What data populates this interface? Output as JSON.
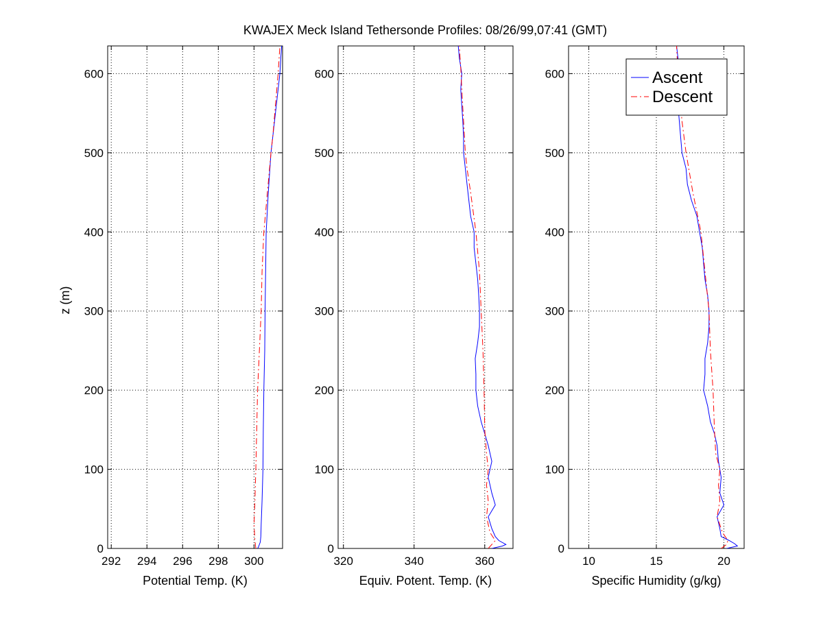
{
  "figure": {
    "title": "KWAJEX Meck Island Tethersonde Profiles: 08/26/99,07:41 (GMT)",
    "ylabel": "z (m)",
    "legend": {
      "placement": "top-right of third panel",
      "entries": [
        {
          "name": "Ascent",
          "color": "#0000ff",
          "style": "solid"
        },
        {
          "name": "Descent",
          "color": "#ff0000",
          "style": "dash-dot"
        }
      ]
    }
  },
  "colors": {
    "ascent": "#0000ff",
    "descent": "#ff0000",
    "grid": "#000000",
    "background": "#ffffff"
  },
  "chart_data": [
    {
      "type": "line",
      "xlabel": "Potential Temp. (K)",
      "ylabel": "z (m)",
      "xlim": [
        291.8,
        301.6
      ],
      "ylim": [
        0,
        635
      ],
      "xticks": [
        292,
        294,
        296,
        298,
        300
      ],
      "xtick_labels": [
        "292",
        "294",
        "296",
        "298",
        "300"
      ],
      "yticks": [
        0,
        100,
        200,
        300,
        400,
        500,
        600
      ],
      "ytick_labels": [
        "0",
        "100",
        "200",
        "300",
        "400",
        "500",
        "600"
      ],
      "grid": true,
      "series": [
        {
          "name": "Ascent",
          "points": [
            [
              300.2,
              0
            ],
            [
              300.25,
              2
            ],
            [
              300.35,
              8
            ],
            [
              300.38,
              15
            ],
            [
              300.4,
              30
            ],
            [
              300.45,
              60
            ],
            [
              300.5,
              100
            ],
            [
              300.52,
              150
            ],
            [
              300.55,
              200
            ],
            [
              300.6,
              250
            ],
            [
              300.62,
              300
            ],
            [
              300.65,
              350
            ],
            [
              300.68,
              400
            ],
            [
              300.8,
              450
            ],
            [
              300.95,
              500
            ],
            [
              301.2,
              550
            ],
            [
              301.35,
              580
            ],
            [
              301.45,
              600
            ],
            [
              301.5,
              620
            ],
            [
              301.55,
              635
            ]
          ]
        },
        {
          "name": "Descent",
          "points": [
            [
              300.1,
              0
            ],
            [
              300.05,
              10
            ],
            [
              300.0,
              30
            ],
            [
              300.05,
              60
            ],
            [
              300.1,
              100
            ],
            [
              300.15,
              150
            ],
            [
              300.2,
              200
            ],
            [
              300.3,
              250
            ],
            [
              300.4,
              300
            ],
            [
              300.45,
              350
            ],
            [
              300.55,
              400
            ],
            [
              300.75,
              450
            ],
            [
              300.95,
              500
            ],
            [
              301.05,
              520
            ],
            [
              301.2,
              560
            ],
            [
              301.35,
              600
            ],
            [
              301.45,
              635
            ]
          ]
        }
      ]
    },
    {
      "type": "line",
      "xlabel": "Equiv. Potent. Temp. (K)",
      "xlim": [
        318.5,
        368
      ],
      "ylim": [
        0,
        635
      ],
      "xticks": [
        320,
        340,
        360
      ],
      "xtick_labels": [
        "320",
        "340",
        "360"
      ],
      "yticks": [
        0,
        100,
        200,
        300,
        400,
        500,
        600
      ],
      "ytick_labels": [
        "0",
        "100",
        "200",
        "300",
        "400",
        "500",
        "600"
      ],
      "grid": true,
      "series": [
        {
          "name": "Ascent",
          "points": [
            [
              362,
              0
            ],
            [
              365,
              3
            ],
            [
              366,
              5
            ],
            [
              364,
              10
            ],
            [
              363,
              15
            ],
            [
              362,
              25
            ],
            [
              361,
              40
            ],
            [
              363,
              55
            ],
            [
              362,
              70
            ],
            [
              361,
              90
            ],
            [
              362,
              110
            ],
            [
              361,
              130
            ],
            [
              360,
              145
            ],
            [
              359,
              160
            ],
            [
              358,
              180
            ],
            [
              357.5,
              200
            ],
            [
              357.5,
              220
            ],
            [
              357.3,
              240
            ],
            [
              358,
              260
            ],
            [
              358.5,
              280
            ],
            [
              358.5,
              300
            ],
            [
              358.3,
              320
            ],
            [
              358,
              340
            ],
            [
              357.5,
              360
            ],
            [
              357,
              380
            ],
            [
              357,
              400
            ],
            [
              356,
              420
            ],
            [
              355.5,
              440
            ],
            [
              355,
              460
            ],
            [
              354.5,
              480
            ],
            [
              354,
              500
            ],
            [
              354,
              520
            ],
            [
              353.8,
              540
            ],
            [
              353.5,
              560
            ],
            [
              353.2,
              580
            ],
            [
              353.5,
              600
            ],
            [
              352.8,
              620
            ],
            [
              352.5,
              635
            ]
          ]
        },
        {
          "name": "Descent",
          "points": [
            [
              361,
              0
            ],
            [
              362,
              5
            ],
            [
              363,
              10
            ],
            [
              361.5,
              20
            ],
            [
              360.5,
              40
            ],
            [
              361,
              60
            ],
            [
              360.5,
              80
            ],
            [
              361,
              100
            ],
            [
              360.5,
              120
            ],
            [
              360,
              150
            ],
            [
              359.8,
              200
            ],
            [
              359.5,
              250
            ],
            [
              359,
              300
            ],
            [
              358.5,
              350
            ],
            [
              357.5,
              400
            ],
            [
              356,
              450
            ],
            [
              355,
              480
            ],
            [
              354.5,
              500
            ],
            [
              354,
              540
            ],
            [
              353.5,
              580
            ],
            [
              353.3,
              600
            ],
            [
              352.8,
              635
            ]
          ]
        }
      ]
    },
    {
      "type": "line",
      "xlabel": "Specific Humidity (g/kg)",
      "xlim": [
        8.5,
        21.5
      ],
      "ylim": [
        0,
        635
      ],
      "xticks": [
        10,
        15,
        20
      ],
      "xtick_labels": [
        "10",
        "15",
        "20"
      ],
      "yticks": [
        0,
        100,
        200,
        300,
        400,
        500,
        600
      ],
      "ytick_labels": [
        "0",
        "100",
        "200",
        "300",
        "400",
        "500",
        "600"
      ],
      "grid": true,
      "series": [
        {
          "name": "Ascent",
          "points": [
            [
              20.2,
              0
            ],
            [
              21.0,
              3
            ],
            [
              20.8,
              6
            ],
            [
              20.4,
              10
            ],
            [
              19.8,
              15
            ],
            [
              19.7,
              25
            ],
            [
              19.5,
              40
            ],
            [
              20.0,
              55
            ],
            [
              19.7,
              70
            ],
            [
              19.8,
              90
            ],
            [
              19.6,
              110
            ],
            [
              19.5,
              130
            ],
            [
              19.3,
              145
            ],
            [
              19.0,
              160
            ],
            [
              18.8,
              180
            ],
            [
              18.5,
              200
            ],
            [
              18.6,
              220
            ],
            [
              18.6,
              240
            ],
            [
              18.8,
              260
            ],
            [
              18.9,
              280
            ],
            [
              18.9,
              300
            ],
            [
              18.8,
              320
            ],
            [
              18.6,
              340
            ],
            [
              18.5,
              360
            ],
            [
              18.4,
              380
            ],
            [
              18.2,
              400
            ],
            [
              18.0,
              420
            ],
            [
              17.6,
              440
            ],
            [
              17.3,
              460
            ],
            [
              17.2,
              480
            ],
            [
              16.9,
              500
            ],
            [
              16.8,
              520
            ],
            [
              16.7,
              540
            ],
            [
              16.6,
              560
            ],
            [
              16.5,
              580
            ],
            [
              16.6,
              600
            ],
            [
              16.6,
              620
            ],
            [
              16.5,
              635
            ]
          ]
        },
        {
          "name": "Descent",
          "points": [
            [
              19.8,
              0
            ],
            [
              20.2,
              5
            ],
            [
              20.3,
              10
            ],
            [
              19.9,
              20
            ],
            [
              19.5,
              40
            ],
            [
              19.7,
              60
            ],
            [
              19.6,
              80
            ],
            [
              19.7,
              100
            ],
            [
              19.4,
              120
            ],
            [
              19.3,
              150
            ],
            [
              19.2,
              200
            ],
            [
              19.0,
              250
            ],
            [
              18.9,
              300
            ],
            [
              18.6,
              350
            ],
            [
              18.3,
              400
            ],
            [
              17.7,
              450
            ],
            [
              17.2,
              500
            ],
            [
              16.9,
              540
            ],
            [
              16.7,
              580
            ],
            [
              16.6,
              600
            ],
            [
              16.5,
              635
            ]
          ]
        }
      ]
    }
  ]
}
